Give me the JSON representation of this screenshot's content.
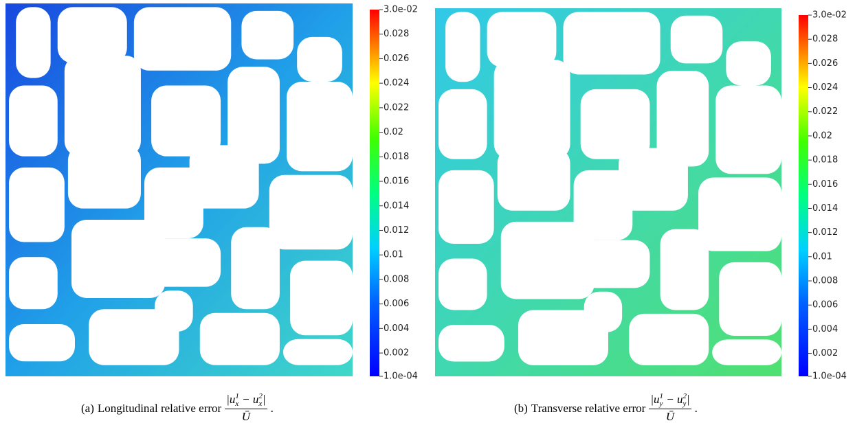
{
  "figures": [
    {
      "colorbar": {
        "range": [
          0.0001,
          0.03
        ],
        "ticks": [
          {
            "value": 0.03,
            "label": "3.0e-02"
          },
          0.028,
          0.026,
          0.024,
          0.022,
          0.02,
          0.018,
          0.016,
          0.014,
          0.012,
          0.01,
          0.008,
          0.006,
          0.004,
          0.002,
          {
            "value": 0.0001,
            "label": "1.0e-04"
          }
        ]
      },
      "caption": {
        "label": "(a)",
        "text": "Longitudinal relative error",
        "numerator": [
          {
            "base": "|u",
            "sub": "x",
            "sup": "1"
          },
          {
            "base": " − u",
            "sub": "x",
            "sup": "2"
          },
          {
            "base": "|"
          }
        ],
        "denominator": "Ū",
        "end": "."
      }
    },
    {
      "colorbar": {
        "range": [
          0.0001,
          0.03
        ],
        "ticks": [
          {
            "value": 0.03,
            "label": "3.0e-02"
          },
          0.028,
          0.026,
          0.024,
          0.022,
          0.02,
          0.018,
          0.016,
          0.014,
          0.012,
          0.01,
          0.008,
          0.006,
          0.004,
          0.002,
          {
            "value": 0.0001,
            "label": "1.0e-04"
          }
        ]
      },
      "caption": {
        "label": "(b)",
        "text": "Transverse relative error",
        "numerator": [
          {
            "base": "|u",
            "sub": "y",
            "sup": "1"
          },
          {
            "base": " − u",
            "sub": "y",
            "sup": "2"
          },
          {
            "base": "|"
          }
        ],
        "denominator": "Ū",
        "end": "."
      }
    }
  ]
}
